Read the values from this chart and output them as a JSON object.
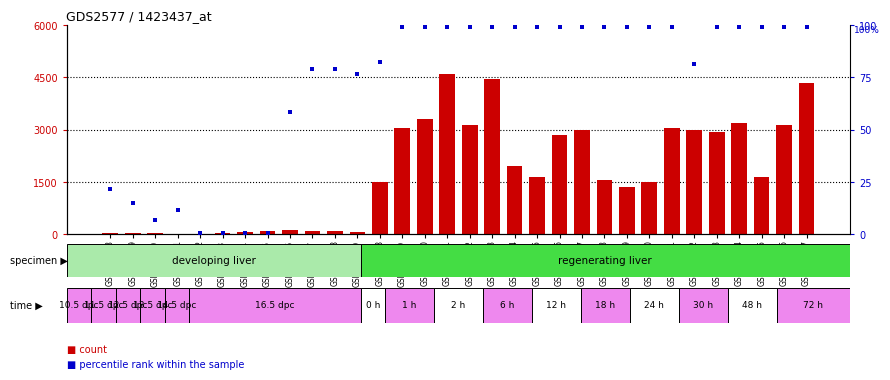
{
  "title": "GDS2577 / 1423437_at",
  "samples": [
    "GSM161128",
    "GSM161129",
    "GSM161130",
    "GSM161131",
    "GSM161132",
    "GSM161133",
    "GSM161134",
    "GSM161135",
    "GSM161136",
    "GSM161137",
    "GSM161138",
    "GSM161139",
    "GSM161108",
    "GSM161109",
    "GSM161110",
    "GSM161111",
    "GSM161112",
    "GSM161113",
    "GSM161114",
    "GSM161115",
    "GSM161116",
    "GSM161117",
    "GSM161118",
    "GSM161119",
    "GSM161120",
    "GSM161121",
    "GSM161122",
    "GSM161123",
    "GSM161124",
    "GSM161125",
    "GSM161126",
    "GSM161127"
  ],
  "counts": [
    30,
    30,
    50,
    20,
    20,
    30,
    80,
    110,
    130,
    100,
    110,
    80,
    1500,
    3050,
    3300,
    4600,
    3150,
    4450,
    1950,
    1650,
    2850,
    3000,
    1550,
    1350,
    1500,
    3050,
    3000,
    2950,
    3200,
    1650,
    3150,
    4350
  ],
  "percentile_left_vals": [
    1300,
    900,
    400,
    700,
    30,
    30,
    30,
    30,
    3500,
    4750,
    4750,
    4600,
    4950,
    5950,
    5950,
    5950,
    5950,
    5950,
    5950,
    5950,
    5950,
    5950,
    5950,
    5950,
    5950,
    5950,
    4900,
    5950,
    5950,
    5950,
    5950,
    5950
  ],
  "bar_color": "#cc0000",
  "dot_color": "#0000cc",
  "ylim_left": [
    0,
    6000
  ],
  "ylim_right": [
    0,
    100
  ],
  "yticks_left": [
    0,
    1500,
    3000,
    4500,
    6000
  ],
  "yticks_right": [
    0,
    25,
    50,
    75,
    100
  ],
  "specimen_groups": [
    {
      "label": "developing liver",
      "start": 0,
      "end": 12,
      "color": "#aaeaaa"
    },
    {
      "label": "regenerating liver",
      "start": 12,
      "end": 32,
      "color": "#44dd44"
    }
  ],
  "time_groups": [
    {
      "label": "10.5 dpc",
      "start": 0,
      "end": 1,
      "color": "#ee88ee"
    },
    {
      "label": "11.5 dpc",
      "start": 1,
      "end": 2,
      "color": "#ee88ee"
    },
    {
      "label": "12.5 dpc",
      "start": 2,
      "end": 3,
      "color": "#ee88ee"
    },
    {
      "label": "13.5 dpc",
      "start": 3,
      "end": 4,
      "color": "#ee88ee"
    },
    {
      "label": "14.5 dpc",
      "start": 4,
      "end": 5,
      "color": "#ee88ee"
    },
    {
      "label": "16.5 dpc",
      "start": 5,
      "end": 12,
      "color": "#ee88ee"
    },
    {
      "label": "0 h",
      "start": 12,
      "end": 13,
      "color": "#ffffff"
    },
    {
      "label": "1 h",
      "start": 13,
      "end": 15,
      "color": "#ffffff"
    },
    {
      "label": "2 h",
      "start": 15,
      "end": 17,
      "color": "#ffffff"
    },
    {
      "label": "6 h",
      "start": 17,
      "end": 19,
      "color": "#ffffff"
    },
    {
      "label": "12 h",
      "start": 19,
      "end": 21,
      "color": "#ffffff"
    },
    {
      "label": "18 h",
      "start": 21,
      "end": 23,
      "color": "#ffffff"
    },
    {
      "label": "24 h",
      "start": 23,
      "end": 25,
      "color": "#ffffff"
    },
    {
      "label": "30 h",
      "start": 25,
      "end": 27,
      "color": "#ffffff"
    },
    {
      "label": "48 h",
      "start": 27,
      "end": 29,
      "color": "#ffffff"
    },
    {
      "label": "72 h",
      "start": 29,
      "end": 32,
      "color": "#ffffff"
    }
  ],
  "time_colors": [
    "#ee88ee",
    "#ee88ee",
    "#ee88ee",
    "#ee88ee",
    "#ee88ee",
    "#ee88ee",
    "#ffffff",
    "#ee88ee",
    "#ffffff",
    "#ee88ee",
    "#ffffff",
    "#ee88ee",
    "#ffffff",
    "#ee88ee",
    "#ffffff",
    "#ee88ee"
  ],
  "bg_color": "#ffffff",
  "legend_count_color": "#cc0000",
  "legend_pct_color": "#0000cc",
  "fig_width": 8.75,
  "fig_height": 3.84,
  "dpi": 100
}
